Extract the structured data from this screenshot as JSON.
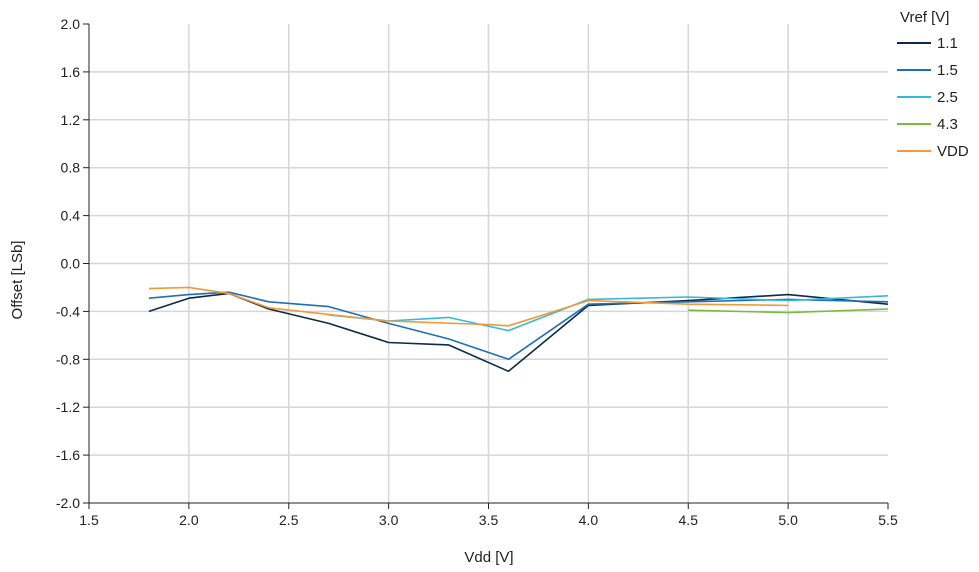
{
  "chart_data": {
    "type": "line",
    "xlabel": "Vdd [V]",
    "ylabel": "Offset [LSb]",
    "xlim": [
      1.5,
      5.5
    ],
    "ylim": [
      -2.0,
      2.0
    ],
    "x_ticks": [
      "1.5",
      "2.0",
      "2.5",
      "3.0",
      "3.5",
      "4.0",
      "4.5",
      "5.0",
      "5.5"
    ],
    "y_ticks": [
      "2.0",
      "1.6",
      "1.2",
      "0.8",
      "0.4",
      "0.0",
      "-0.4",
      "-0.8",
      "-1.2",
      "-1.6",
      "-2.0"
    ],
    "grid": true,
    "legend": {
      "title": "Vref [V]",
      "position": "right"
    },
    "series": [
      {
        "name": "1.1",
        "color": "#0d2a4a",
        "x": [
          1.8,
          2.0,
          2.2,
          2.4,
          2.7,
          3.0,
          3.3,
          3.6,
          4.0,
          4.5,
          5.0,
          5.5
        ],
        "y": [
          -0.4,
          -0.29,
          -0.25,
          -0.38,
          -0.5,
          -0.66,
          -0.68,
          -0.9,
          -0.35,
          -0.31,
          -0.26,
          -0.34
        ]
      },
      {
        "name": "1.5",
        "color": "#1f6fb5",
        "x": [
          1.8,
          2.0,
          2.2,
          2.4,
          2.7,
          3.0,
          3.3,
          3.6,
          4.0,
          4.5,
          5.0,
          5.5
        ],
        "y": [
          -0.29,
          -0.26,
          -0.24,
          -0.32,
          -0.36,
          -0.5,
          -0.63,
          -0.8,
          -0.34,
          -0.32,
          -0.3,
          -0.32
        ]
      },
      {
        "name": "2.5",
        "color": "#35b8dc",
        "x": [
          2.7,
          3.0,
          3.3,
          3.6,
          4.0,
          4.5,
          5.0,
          5.5
        ],
        "y": [
          -0.43,
          -0.48,
          -0.45,
          -0.56,
          -0.3,
          -0.28,
          -0.31,
          -0.27
        ]
      },
      {
        "name": "4.3",
        "color": "#7dbb3f",
        "x": [
          4.5,
          5.0,
          5.5
        ],
        "y": [
          -0.39,
          -0.41,
          -0.38
        ]
      },
      {
        "name": "VDD",
        "color": "#f29a3a",
        "x": [
          1.8,
          2.0,
          2.2,
          2.4,
          3.0,
          3.5,
          3.6,
          4.0,
          4.5,
          5.0
        ],
        "y": [
          -0.21,
          -0.2,
          -0.25,
          -0.37,
          -0.48,
          -0.51,
          -0.52,
          -0.31,
          -0.34,
          -0.35
        ]
      }
    ]
  }
}
